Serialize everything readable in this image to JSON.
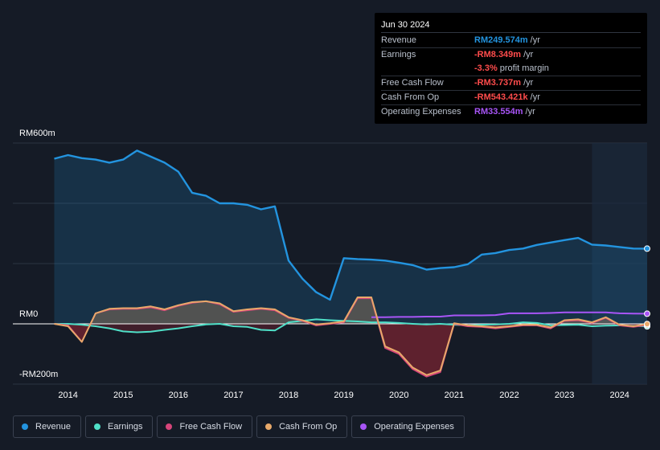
{
  "tooltip": {
    "date": "Jun 30 2024",
    "rows": [
      {
        "label": "Revenue",
        "value": "RM249.574m",
        "unit": "/yr",
        "color": "#2394df"
      },
      {
        "label": "Earnings",
        "value": "-RM8.349m",
        "unit": "/yr",
        "color": "#ff4c4c"
      },
      {
        "label": "",
        "value": "-3.3%",
        "unit": "profit margin",
        "color": "#ff4c4c"
      },
      {
        "label": "Free Cash Flow",
        "value": "-RM3.737m",
        "unit": "/yr",
        "color": "#ff4c4c"
      },
      {
        "label": "Cash From Op",
        "value": "-RM543.421k",
        "unit": "/yr",
        "color": "#ff4c4c"
      },
      {
        "label": "Operating Expenses",
        "value": "RM33.554m",
        "unit": "/yr",
        "color": "#a855f7"
      }
    ]
  },
  "colors": {
    "revenue": "#2394df",
    "earnings": "#4fe0c8",
    "free_cash_flow": "#d6457a",
    "cash_from_op": "#e8a96a",
    "operating_expenses": "#a855f7",
    "negative_fill": "#6b2230"
  },
  "chart_data": {
    "type": "line",
    "title": "",
    "xlabel": "",
    "ylabel": "",
    "unit": "RM millions",
    "y_axis_labels": [
      "RM600m",
      "RM0",
      "-RM200m"
    ],
    "ylim": [
      -200,
      600
    ],
    "xlim": [
      2013.0,
      2024.5
    ],
    "x_ticks": [
      "2014",
      "2015",
      "2016",
      "2017",
      "2018",
      "2019",
      "2020",
      "2021",
      "2022",
      "2023",
      "2024"
    ],
    "x_tick_values": [
      2014,
      2015,
      2016,
      2017,
      2018,
      2019,
      2020,
      2021,
      2022,
      2023,
      2024
    ],
    "highlight_start": 2023.5,
    "series": [
      {
        "name": "Revenue",
        "key": "revenue",
        "points": [
          [
            2013.75,
            548
          ],
          [
            2014.0,
            560
          ],
          [
            2014.25,
            550
          ],
          [
            2014.5,
            545
          ],
          [
            2014.75,
            535
          ],
          [
            2015.0,
            545
          ],
          [
            2015.25,
            575
          ],
          [
            2015.5,
            555
          ],
          [
            2015.75,
            535
          ],
          [
            2016.0,
            505
          ],
          [
            2016.25,
            435
          ],
          [
            2016.5,
            425
          ],
          [
            2016.75,
            400
          ],
          [
            2017.0,
            400
          ],
          [
            2017.25,
            395
          ],
          [
            2017.5,
            380
          ],
          [
            2017.75,
            390
          ],
          [
            2018.0,
            210
          ],
          [
            2018.25,
            150
          ],
          [
            2018.5,
            105
          ],
          [
            2018.75,
            80
          ],
          [
            2019.0,
            218
          ],
          [
            2019.25,
            215
          ],
          [
            2019.5,
            213
          ],
          [
            2019.75,
            210
          ],
          [
            2020.0,
            203
          ],
          [
            2020.25,
            195
          ],
          [
            2020.5,
            180
          ],
          [
            2020.75,
            185
          ],
          [
            2021.0,
            188
          ],
          [
            2021.25,
            198
          ],
          [
            2021.5,
            230
          ],
          [
            2021.75,
            235
          ],
          [
            2022.0,
            245
          ],
          [
            2022.25,
            250
          ],
          [
            2022.5,
            262
          ],
          [
            2022.75,
            270
          ],
          [
            2023.0,
            278
          ],
          [
            2023.25,
            285
          ],
          [
            2023.5,
            263
          ],
          [
            2023.75,
            260
          ],
          [
            2024.0,
            255
          ],
          [
            2024.25,
            250
          ],
          [
            2024.5,
            249.574
          ]
        ]
      },
      {
        "name": "Earnings",
        "key": "earnings",
        "points": [
          [
            2013.75,
            0
          ],
          [
            2014.0,
            0
          ],
          [
            2014.25,
            -3
          ],
          [
            2014.5,
            -8
          ],
          [
            2014.75,
            -15
          ],
          [
            2015.0,
            -25
          ],
          [
            2015.25,
            -28
          ],
          [
            2015.5,
            -26
          ],
          [
            2015.75,
            -20
          ],
          [
            2016.0,
            -15
          ],
          [
            2016.25,
            -8
          ],
          [
            2016.5,
            -2
          ],
          [
            2016.75,
            0
          ],
          [
            2017.0,
            -8
          ],
          [
            2017.25,
            -10
          ],
          [
            2017.5,
            -20
          ],
          [
            2017.75,
            -22
          ],
          [
            2018.0,
            5
          ],
          [
            2018.25,
            10
          ],
          [
            2018.5,
            15
          ],
          [
            2018.75,
            12
          ],
          [
            2019.0,
            10
          ],
          [
            2019.25,
            8
          ],
          [
            2019.5,
            5
          ],
          [
            2019.75,
            5
          ],
          [
            2020.0,
            3
          ],
          [
            2020.25,
            0
          ],
          [
            2020.5,
            -2
          ],
          [
            2020.75,
            0
          ],
          [
            2021.0,
            -3
          ],
          [
            2021.25,
            -5
          ],
          [
            2021.5,
            -3
          ],
          [
            2021.75,
            -2
          ],
          [
            2022.0,
            0
          ],
          [
            2022.25,
            5
          ],
          [
            2022.5,
            3
          ],
          [
            2022.75,
            -5
          ],
          [
            2023.0,
            -4
          ],
          [
            2023.25,
            -3
          ],
          [
            2023.5,
            -8
          ],
          [
            2023.75,
            -6
          ],
          [
            2024.0,
            -5
          ],
          [
            2024.25,
            -7
          ],
          [
            2024.5,
            -8.349
          ]
        ]
      },
      {
        "name": "Free Cash Flow",
        "key": "free_cash_flow",
        "points": [
          [
            2013.75,
            0
          ],
          [
            2014.0,
            -5
          ],
          [
            2014.25,
            -60
          ],
          [
            2014.5,
            35
          ],
          [
            2014.75,
            48
          ],
          [
            2015.0,
            50
          ],
          [
            2015.25,
            50
          ],
          [
            2015.5,
            55
          ],
          [
            2015.75,
            45
          ],
          [
            2016.0,
            60
          ],
          [
            2016.25,
            70
          ],
          [
            2016.5,
            75
          ],
          [
            2016.75,
            65
          ],
          [
            2017.0,
            40
          ],
          [
            2017.25,
            45
          ],
          [
            2017.5,
            50
          ],
          [
            2017.75,
            45
          ],
          [
            2018.0,
            20
          ],
          [
            2018.25,
            10
          ],
          [
            2018.5,
            -5
          ],
          [
            2018.75,
            0
          ],
          [
            2019.0,
            5
          ],
          [
            2019.25,
            85
          ],
          [
            2019.5,
            85
          ],
          [
            2019.75,
            -80
          ],
          [
            2020.0,
            -100
          ],
          [
            2020.25,
            -150
          ],
          [
            2020.5,
            -175
          ],
          [
            2020.75,
            -160
          ],
          [
            2021.0,
            0
          ],
          [
            2021.25,
            -8
          ],
          [
            2021.5,
            -10
          ],
          [
            2021.75,
            -15
          ],
          [
            2022.0,
            -10
          ],
          [
            2022.25,
            -5
          ],
          [
            2022.5,
            -5
          ],
          [
            2022.75,
            -15
          ],
          [
            2023.0,
            10
          ],
          [
            2023.25,
            12
          ],
          [
            2023.5,
            3
          ],
          [
            2023.75,
            20
          ],
          [
            2024.0,
            -5
          ],
          [
            2024.25,
            -10
          ],
          [
            2024.5,
            -3.737
          ]
        ]
      },
      {
        "name": "Cash From Op",
        "key": "cash_from_op",
        "points": [
          [
            2013.75,
            0
          ],
          [
            2014.0,
            -8
          ],
          [
            2014.25,
            -60
          ],
          [
            2014.5,
            35
          ],
          [
            2014.75,
            50
          ],
          [
            2015.0,
            52
          ],
          [
            2015.25,
            52
          ],
          [
            2015.5,
            58
          ],
          [
            2015.75,
            48
          ],
          [
            2016.0,
            62
          ],
          [
            2016.25,
            72
          ],
          [
            2016.5,
            75
          ],
          [
            2016.75,
            68
          ],
          [
            2017.0,
            42
          ],
          [
            2017.25,
            48
          ],
          [
            2017.5,
            52
          ],
          [
            2017.75,
            48
          ],
          [
            2018.0,
            22
          ],
          [
            2018.25,
            12
          ],
          [
            2018.5,
            -2
          ],
          [
            2018.75,
            2
          ],
          [
            2019.0,
            8
          ],
          [
            2019.25,
            88
          ],
          [
            2019.5,
            88
          ],
          [
            2019.75,
            -75
          ],
          [
            2020.0,
            -95
          ],
          [
            2020.25,
            -145
          ],
          [
            2020.5,
            -170
          ],
          [
            2020.75,
            -155
          ],
          [
            2021.0,
            2
          ],
          [
            2021.25,
            -5
          ],
          [
            2021.5,
            -8
          ],
          [
            2021.75,
            -12
          ],
          [
            2022.0,
            -8
          ],
          [
            2022.25,
            -3
          ],
          [
            2022.5,
            -3
          ],
          [
            2022.75,
            -12
          ],
          [
            2023.0,
            12
          ],
          [
            2023.25,
            15
          ],
          [
            2023.5,
            5
          ],
          [
            2023.75,
            22
          ],
          [
            2024.0,
            -3
          ],
          [
            2024.25,
            -8
          ],
          [
            2024.5,
            -0.543
          ]
        ]
      },
      {
        "name": "Operating Expenses",
        "key": "operating_expenses",
        "points": [
          [
            2019.5,
            22
          ],
          [
            2019.75,
            22
          ],
          [
            2020.0,
            23
          ],
          [
            2020.25,
            23
          ],
          [
            2020.5,
            24
          ],
          [
            2020.75,
            24
          ],
          [
            2021.0,
            28
          ],
          [
            2021.25,
            28
          ],
          [
            2021.5,
            28
          ],
          [
            2021.75,
            29
          ],
          [
            2022.0,
            35
          ],
          [
            2022.25,
            35
          ],
          [
            2022.5,
            35
          ],
          [
            2022.75,
            36
          ],
          [
            2023.0,
            38
          ],
          [
            2023.25,
            38
          ],
          [
            2023.5,
            38
          ],
          [
            2023.75,
            38
          ],
          [
            2024.0,
            35
          ],
          [
            2024.25,
            34
          ],
          [
            2024.5,
            33.554
          ]
        ]
      }
    ]
  },
  "legend": [
    {
      "label": "Revenue",
      "key": "revenue"
    },
    {
      "label": "Earnings",
      "key": "earnings"
    },
    {
      "label": "Free Cash Flow",
      "key": "free_cash_flow"
    },
    {
      "label": "Cash From Op",
      "key": "cash_from_op"
    },
    {
      "label": "Operating Expenses",
      "key": "operating_expenses"
    }
  ]
}
